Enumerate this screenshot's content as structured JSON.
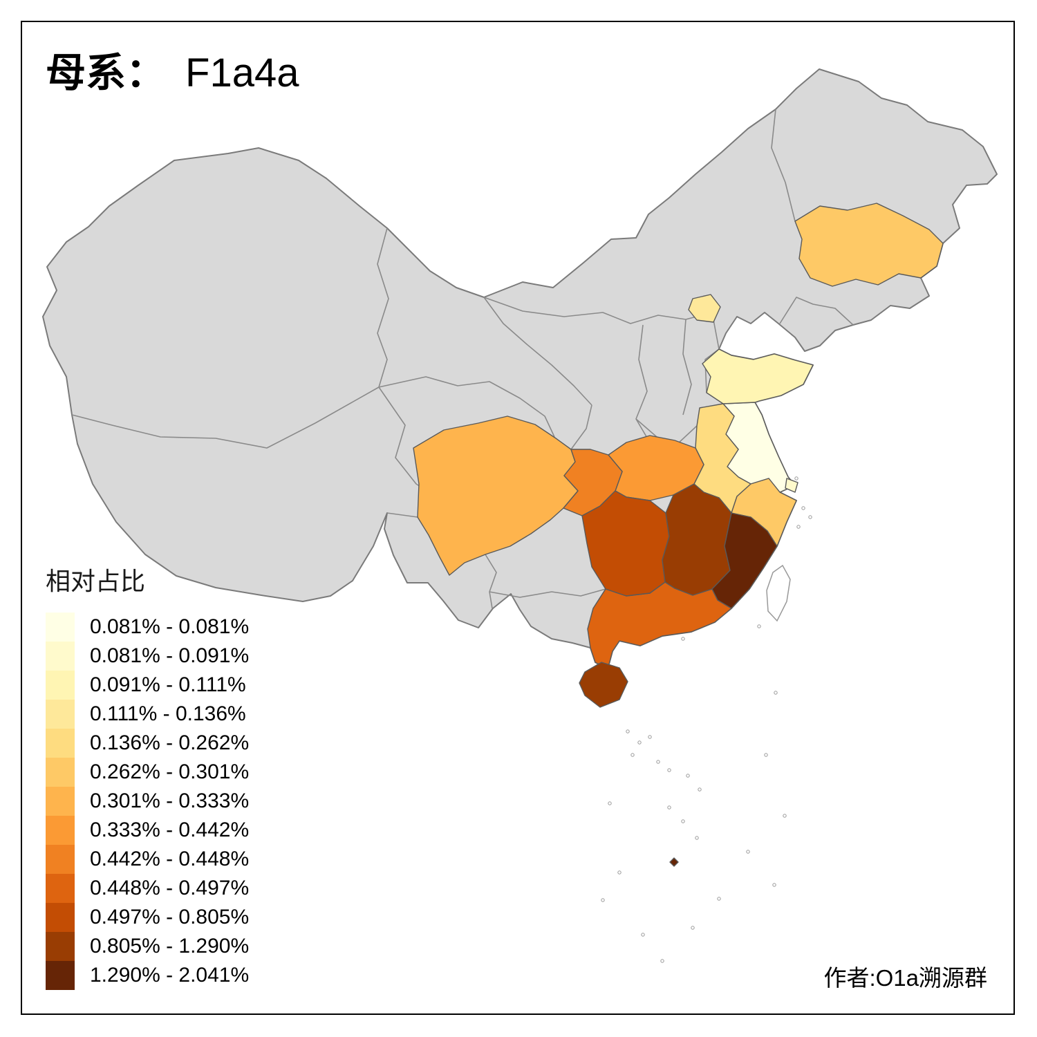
{
  "title": {
    "prefix": "母系：",
    "value": "F1a4a"
  },
  "attribution": "作者:O1a溯源群",
  "legend": {
    "title": "相对占比",
    "items": [
      {
        "label": "0.081% - 0.081%",
        "color": "#FFFFE5"
      },
      {
        "label": "0.081% - 0.091%",
        "color": "#FFFACC"
      },
      {
        "label": "0.091% - 0.111%",
        "color": "#FFF5B3"
      },
      {
        "label": "0.111% - 0.136%",
        "color": "#FEE89A"
      },
      {
        "label": "0.136% - 0.262%",
        "color": "#FEDC80"
      },
      {
        "label": "0.262% - 0.301%",
        "color": "#FEC966"
      },
      {
        "label": "0.301% - 0.333%",
        "color": "#FEB44D"
      },
      {
        "label": "0.333% - 0.442%",
        "color": "#FB9A34"
      },
      {
        "label": "0.442% - 0.448%",
        "color": "#F08122"
      },
      {
        "label": "0.448% - 0.497%",
        "color": "#DE6410"
      },
      {
        "label": "0.497% - 0.805%",
        "color": "#C34D04"
      },
      {
        "label": "0.805% - 1.290%",
        "color": "#993D03"
      },
      {
        "label": "1.290% - 2.041%",
        "color": "#662506"
      }
    ]
  },
  "map": {
    "no_data_color": "#D9D9D9",
    "outline_color": "#7A7A7A",
    "province_border_color": "#595959",
    "island_stroke_color": "#999999",
    "provinces": [
      {
        "id": "jiangsu",
        "band": 0
      },
      {
        "id": "shanghai",
        "band": 1
      },
      {
        "id": "shandong",
        "band": 2
      },
      {
        "id": "beijing",
        "band": 3
      },
      {
        "id": "anhui",
        "band": 4
      },
      {
        "id": "jilin",
        "band": 5
      },
      {
        "id": "zhejiang",
        "band": 5
      },
      {
        "id": "sichuan",
        "band": 6
      },
      {
        "id": "hubei",
        "band": 7
      },
      {
        "id": "chongqing",
        "band": 8
      },
      {
        "id": "guangdong",
        "band": 9
      },
      {
        "id": "hunan",
        "band": 10
      },
      {
        "id": "jiangxi",
        "band": 11
      },
      {
        "id": "hainan",
        "band": 11
      },
      {
        "id": "fujian",
        "band": 12
      },
      {
        "id": "nanhai-islands",
        "band": 12
      }
    ]
  }
}
